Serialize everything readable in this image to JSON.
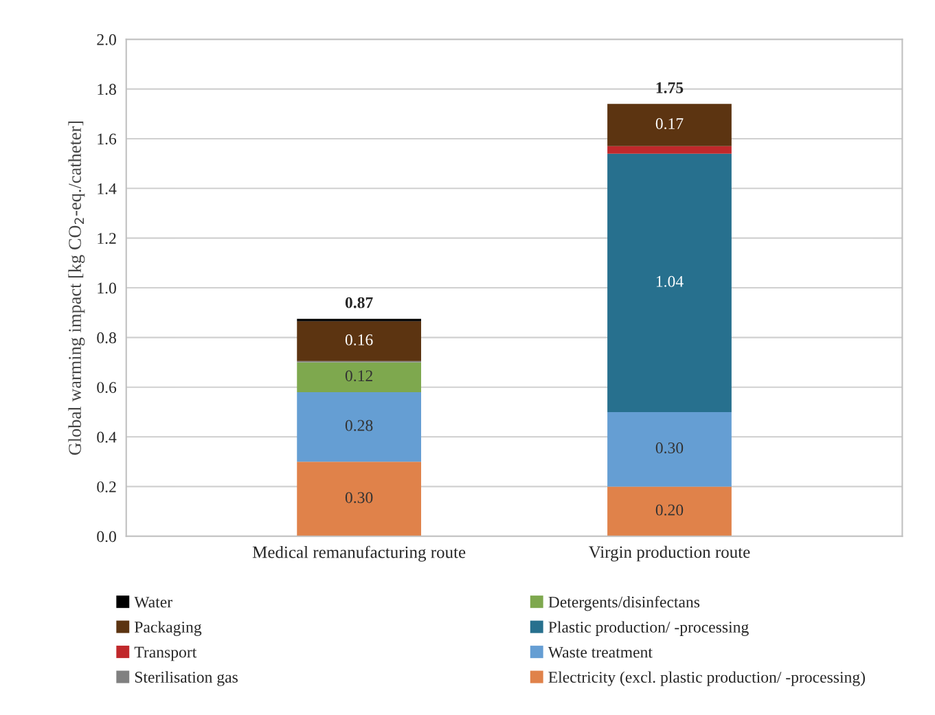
{
  "chart_data": {
    "type": "bar",
    "stacked": true,
    "ylabel": "Global warming impact [kg CO$_{2}$-eq./catheter]",
    "categories": [
      "Medical remanufacturing route",
      "Virgin production route"
    ],
    "series": [
      {
        "name": "Electricity (excl. plastic production/ -processing)",
        "color": "#e0824a",
        "values": [
          0.3,
          0.2
        ],
        "value_labels": [
          "0.30",
          "0.20"
        ]
      },
      {
        "name": "Waste treatment",
        "color": "#659ed3",
        "values": [
          0.28,
          0.3
        ],
        "value_labels": [
          "0.28",
          "0.30"
        ]
      },
      {
        "name": "Plastic production/ -processing",
        "color": "#27708e",
        "values": [
          0,
          1.04
        ],
        "value_labels": [
          null,
          "1.04"
        ]
      },
      {
        "name": "Detergents/disinfectans",
        "color": "#7ea84e",
        "values": [
          0.12,
          0
        ],
        "value_labels": [
          "0.12",
          null
        ]
      },
      {
        "name": "Sterilisation gas",
        "color": "#808080",
        "values": [
          0.005,
          0
        ]
      },
      {
        "name": "Transport",
        "color": "#c0282b",
        "values": [
          0,
          0.03
        ]
      },
      {
        "name": "Packaging",
        "color": "#5c3411",
        "values": [
          0.16,
          0.17
        ],
        "value_labels": [
          "0.16",
          "0.17"
        ]
      },
      {
        "name": "Water",
        "color": "#000000",
        "values": [
          0.01,
          0
        ]
      }
    ],
    "totals": [
      "0.87",
      "1.75"
    ],
    "ylim": [
      0,
      2.0
    ],
    "yticks": [
      {
        "value": 0,
        "label": "0.0"
      },
      {
        "value": 0.2,
        "label": "0.2"
      },
      {
        "value": 0.4,
        "label": "0.4"
      },
      {
        "value": 0.6,
        "label": "0.6"
      },
      {
        "value": 0.8,
        "label": "0.8"
      },
      {
        "value": 1.0,
        "label": "1.0"
      },
      {
        "value": 1.2,
        "label": "1.2"
      },
      {
        "value": 1.4,
        "label": "1.4"
      },
      {
        "value": 1.6,
        "label": "1.6"
      },
      {
        "value": 1.8,
        "label": "1.8"
      },
      {
        "value": 2.0,
        "label": "2.0"
      }
    ],
    "grid": "y",
    "legend": "bottom"
  }
}
